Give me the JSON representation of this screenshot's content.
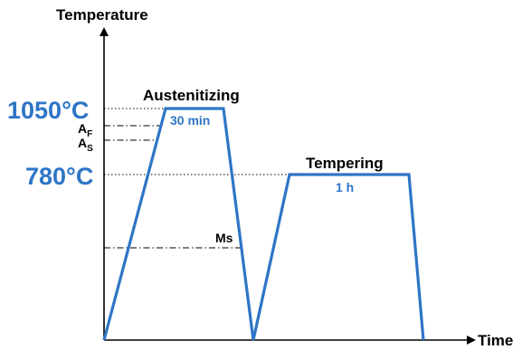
{
  "axes": {
    "y_title": "Temperature",
    "x_title": "Time"
  },
  "levels": {
    "austenitizing_temp": "1050°C",
    "tempering_temp": "780°C",
    "af_main": "A",
    "af_sub": "F",
    "as_main": "A",
    "as_sub": "S",
    "ms": "Ms"
  },
  "stages": {
    "austenitizing": {
      "label": "Austenitizing",
      "duration": "30 min"
    },
    "tempering": {
      "label": "Tempering",
      "duration": "1 h"
    }
  },
  "colors": {
    "curve": "#2e75c6",
    "temp_label": "#2e75c6",
    "axis": "#000000",
    "guide": "#000000"
  }
}
